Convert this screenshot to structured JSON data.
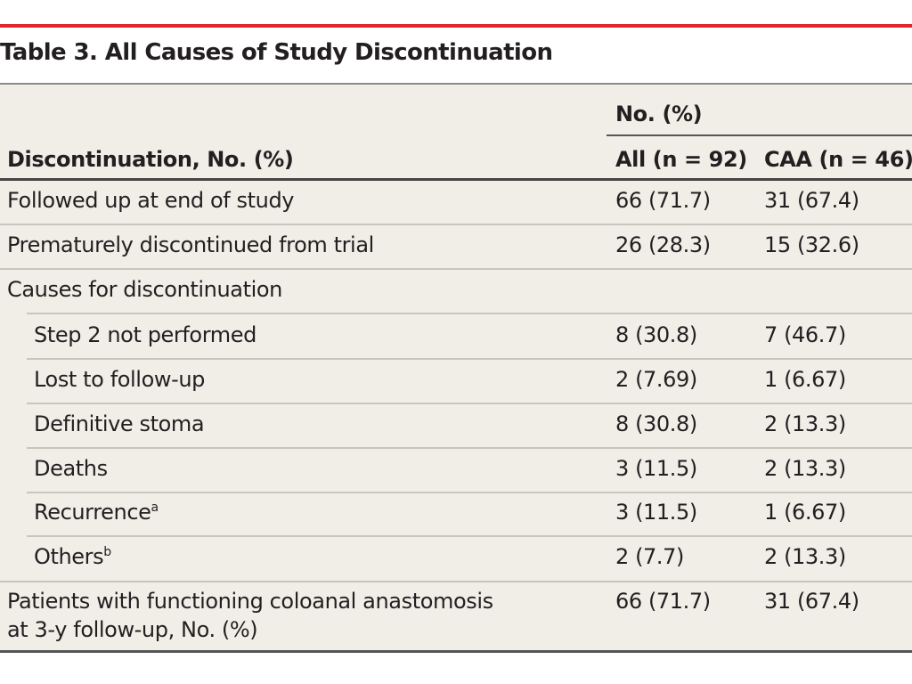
{
  "table": {
    "title": "Table 3. All Causes of Study Discontinuation",
    "group_header": "No. (%)",
    "headers": [
      "Discontinuation, No. (%)",
      "All (n = 92)",
      "CAA (n = 46)"
    ],
    "rows": [
      {
        "label": "Followed up at end of study",
        "all": "66 (71.7)",
        "caa": "31 (67.4)"
      },
      {
        "label": "Prematurely discontinued from trial",
        "all": "26 (28.3)",
        "caa": "15 (32.6)"
      },
      {
        "label": "Causes for discontinuation",
        "all": "",
        "caa": ""
      },
      {
        "label": "Step 2 not performed",
        "all": "8 (30.8)",
        "caa": "7 (46.7)"
      },
      {
        "label": "Lost to follow-up",
        "all": "2 (7.69)",
        "caa": "1 (6.67)"
      },
      {
        "label": "Definitive stoma",
        "all": "8 (30.8)",
        "caa": "2 (13.3)"
      },
      {
        "label": "Deaths",
        "all": "3 (11.5)",
        "caa": "2 (13.3)"
      },
      {
        "label": "Recurrence",
        "sup": "a",
        "all": "3 (11.5)",
        "caa": "1 (6.67)"
      },
      {
        "label": "Others",
        "sup": "b",
        "all": "2 (7.7)",
        "caa": "2 (13.3)"
      },
      {
        "label_line1": "Patients with functioning coloanal anastomosis",
        "label_line2": "at 3-y follow-up, No. (%)",
        "all": "66 (71.7)",
        "caa": "31 (67.4)"
      }
    ]
  },
  "colors": {
    "accent_rule": "#e1252f",
    "table_bg": "#f1eee8",
    "text": "#231f20"
  }
}
